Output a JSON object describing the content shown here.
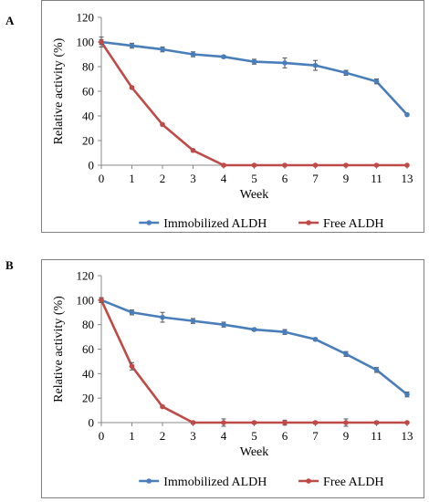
{
  "chart_data": [
    {
      "panel": "A",
      "type": "line",
      "x": [
        "0",
        "1",
        "2",
        "3",
        "4",
        "5",
        "6",
        "7",
        "9",
        "11",
        "13"
      ],
      "series": [
        {
          "name": "Immobilized ALDH",
          "color": "#4a7ebb",
          "values": [
            100,
            97,
            94,
            90,
            88,
            84,
            83,
            81,
            75,
            68,
            41
          ],
          "errors": [
            4,
            2,
            2,
            2,
            1,
            2,
            4,
            4,
            2,
            2,
            1
          ]
        },
        {
          "name": "Free ALDH",
          "color": "#be4b48",
          "values": [
            100,
            63,
            33,
            12,
            0,
            0,
            0,
            0,
            0,
            0,
            0
          ],
          "errors": [
            2,
            1,
            1,
            1,
            1,
            0.5,
            0.5,
            0.5,
            0.5,
            0.5,
            0.5
          ]
        }
      ],
      "xlabel": "Week",
      "ylabel": "Relative activity (%)",
      "ylim": [
        0,
        120
      ],
      "yticks": [
        0,
        20,
        40,
        60,
        80,
        100,
        120
      ],
      "grid": false,
      "legend": "bottom"
    },
    {
      "panel": "B",
      "type": "line",
      "x": [
        "0",
        "1",
        "2",
        "3",
        "4",
        "5",
        "6",
        "7",
        "9",
        "11",
        "13"
      ],
      "series": [
        {
          "name": "Immobilized ALDH",
          "color": "#4a7ebb",
          "values": [
            100,
            90,
            86,
            83,
            80,
            76,
            74,
            68,
            56,
            43,
            23
          ],
          "errors": [
            2,
            2,
            4,
            2,
            2,
            1,
            2,
            1,
            2,
            2,
            2
          ]
        },
        {
          "name": "Free ALDH",
          "color": "#be4b48",
          "values": [
            100,
            46,
            13,
            0,
            0,
            0,
            0,
            0,
            0,
            0,
            0
          ],
          "errors": [
            2,
            3,
            1,
            1,
            3,
            1,
            2,
            1,
            3,
            1,
            0.5
          ]
        }
      ],
      "xlabel": "Week",
      "ylabel": "Relative activity (%)",
      "ylim": [
        0,
        120
      ],
      "yticks": [
        0,
        20,
        40,
        60,
        80,
        100,
        120
      ],
      "grid": false,
      "legend": "bottom"
    }
  ]
}
